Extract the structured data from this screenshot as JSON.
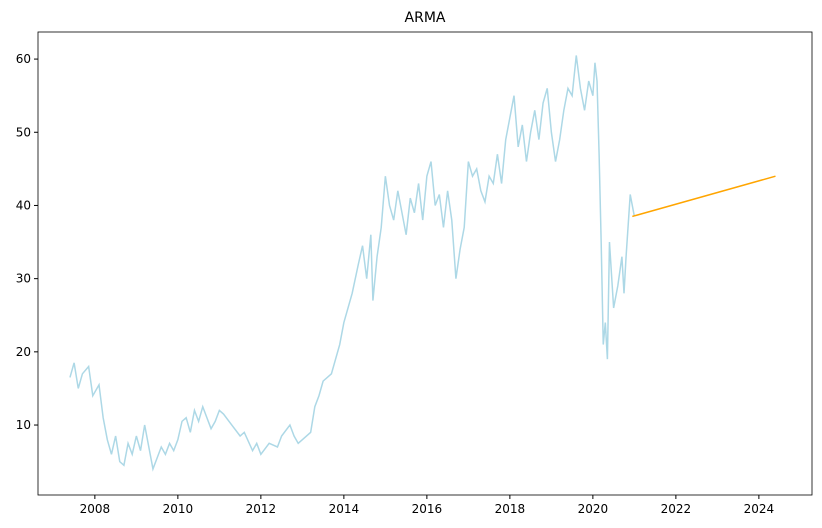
{
  "chart_data": {
    "type": "line",
    "title": "ARMA",
    "xlim": [
      2006.63,
      2025.28
    ],
    "xticks": [
      2008,
      2010,
      2012,
      2014,
      2016,
      2018,
      2020,
      2022,
      2024
    ],
    "ylim": [
      0.44,
      63.7
    ],
    "yticks": [
      10,
      20,
      30,
      40,
      50,
      60
    ],
    "grid": false,
    "series": [
      {
        "color": "#add8e6",
        "x": [
          2007.4,
          2007.5,
          2007.6,
          2007.7,
          2007.85,
          2007.95,
          2008.1,
          2008.2,
          2008.3,
          2008.4,
          2008.5,
          2008.6,
          2008.7,
          2008.8,
          2008.9,
          2009.0,
          2009.1,
          2009.2,
          2009.3,
          2009.4,
          2009.5,
          2009.6,
          2009.7,
          2009.8,
          2009.9,
          2010.0,
          2010.1,
          2010.2,
          2010.3,
          2010.4,
          2010.5,
          2010.6,
          2010.7,
          2010.8,
          2010.9,
          2011.0,
          2011.1,
          2011.3,
          2011.5,
          2011.6,
          2011.8,
          2011.9,
          2012.0,
          2012.2,
          2012.4,
          2012.5,
          2012.7,
          2012.8,
          2012.9,
          2013.0,
          2013.2,
          2013.3,
          2013.4,
          2013.5,
          2013.7,
          2013.8,
          2013.9,
          2014.0,
          2014.1,
          2014.2,
          2014.35,
          2014.45,
          2014.55,
          2014.65,
          2014.7,
          2014.8,
          2014.9,
          2015.0,
          2015.1,
          2015.2,
          2015.3,
          2015.4,
          2015.5,
          2015.6,
          2015.7,
          2015.8,
          2015.9,
          2016.0,
          2016.1,
          2016.2,
          2016.3,
          2016.4,
          2016.5,
          2016.6,
          2016.7,
          2016.8,
          2016.9,
          2017.0,
          2017.1,
          2017.2,
          2017.3,
          2017.4,
          2017.5,
          2017.6,
          2017.7,
          2017.8,
          2017.9,
          2018.0,
          2018.1,
          2018.2,
          2018.3,
          2018.4,
          2018.5,
          2018.6,
          2018.7,
          2018.8,
          2018.9,
          2019.0,
          2019.1,
          2019.2,
          2019.3,
          2019.4,
          2019.5,
          2019.6,
          2019.7,
          2019.8,
          2019.9,
          2020.0,
          2020.05,
          2020.1,
          2020.15,
          2020.2,
          2020.25,
          2020.3,
          2020.35,
          2020.4,
          2020.5,
          2020.6,
          2020.7,
          2020.75,
          2020.8,
          2020.9,
          2021.0
        ],
        "values": [
          16.5,
          18.5,
          15,
          17,
          18,
          14,
          15.5,
          11,
          8,
          6,
          8.5,
          5,
          4.5,
          7.5,
          6,
          8.5,
          6.5,
          10,
          7,
          4,
          5.5,
          7,
          6,
          7.5,
          6.5,
          8,
          10.5,
          11,
          9,
          12,
          10.5,
          12.5,
          11,
          9.5,
          10.5,
          12,
          11.5,
          10,
          8.5,
          9,
          6.5,
          7.5,
          6,
          7.5,
          7,
          8.5,
          10,
          8.5,
          7.5,
          8,
          9,
          12.5,
          14,
          16,
          17,
          19,
          21,
          24,
          26,
          28,
          32,
          34.5,
          30,
          36,
          27,
          33,
          37,
          44,
          40,
          38,
          42,
          39,
          36,
          41,
          39,
          43,
          38,
          44,
          46,
          40,
          41.5,
          37,
          42,
          38,
          30,
          34,
          37,
          46,
          44,
          45,
          42,
          40.5,
          44,
          43,
          47,
          43,
          49,
          52,
          55,
          48,
          51,
          46,
          50,
          53,
          49,
          54,
          56,
          50,
          46,
          49,
          53,
          56,
          55,
          60.5,
          56,
          53,
          57,
          55,
          59.5,
          57,
          47,
          35,
          21,
          24,
          19,
          35,
          26,
          29,
          33,
          28,
          33,
          41.5,
          38.5
        ]
      },
      {
        "color": "#ffa500",
        "x": [
          2020.95,
          2024.4
        ],
        "values": [
          38.5,
          44
        ]
      }
    ]
  }
}
